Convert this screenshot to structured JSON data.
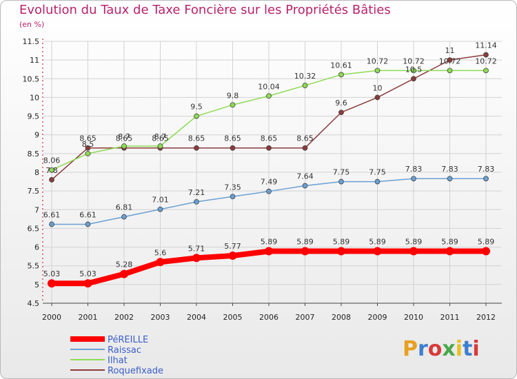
{
  "title": "Evolution du Taux de Taxe Foncière sur les Propriétés Bâties",
  "subtitle": "(en %)",
  "logo": "Proxiti",
  "chart_data": {
    "type": "line",
    "title": "Evolution du Taux de Taxe Foncière sur les Propriétés Bâties",
    "ylabel": "(en %)",
    "xlabel": "",
    "ylim": [
      4.5,
      11.5
    ],
    "yticks": [
      4.5,
      5,
      5.5,
      6,
      6.5,
      7,
      7.5,
      8,
      8.5,
      9,
      9.5,
      10,
      10.5,
      11,
      11.5
    ],
    "ytick_labels": [
      "4.5",
      "5",
      "5.5",
      "6",
      "6.5",
      "7",
      "7.5",
      "8",
      "8.5",
      "9",
      "9.5",
      "10",
      "10.5",
      "11",
      "11.5"
    ],
    "categories": [
      "2000",
      "2001",
      "2002",
      "2003",
      "2004",
      "2005",
      "2006",
      "2007",
      "2008",
      "2009",
      "2010",
      "2011",
      "2012"
    ],
    "grid": true,
    "legend": "bottom-left",
    "series": [
      {
        "name": "PéREILLE",
        "color": "#ff0000",
        "values": [
          5.03,
          5.03,
          5.28,
          5.6,
          5.71,
          5.77,
          5.89,
          5.89,
          5.89,
          5.89,
          5.89,
          5.89,
          5.89
        ],
        "labels": [
          "5.03",
          "5.03",
          "5.28",
          "5.6",
          "5.71",
          "5.77",
          "5.89",
          "5.89",
          "5.89",
          "5.89",
          "5.89",
          "5.89",
          "5.89"
        ]
      },
      {
        "name": "Raissac",
        "color": "#6a9fd2",
        "values": [
          6.61,
          6.61,
          6.81,
          7.01,
          7.21,
          7.35,
          7.49,
          7.64,
          7.75,
          7.75,
          7.83,
          7.83,
          7.83
        ],
        "labels": [
          "6.61",
          "6.61",
          "6.81",
          "7.01",
          "7.21",
          "7.35",
          "7.49",
          "7.64",
          "7.75",
          "7.75",
          "7.83",
          "7.83",
          "7.83"
        ]
      },
      {
        "name": "Ilhat",
        "color": "#8dda52",
        "values": [
          8.06,
          8.5,
          8.7,
          8.7,
          9.5,
          9.8,
          10.04,
          10.32,
          10.61,
          10.72,
          10.72,
          10.72,
          10.72
        ],
        "labels": [
          "8.06",
          "8.5",
          "8.7",
          "8.7",
          "9.5",
          "9.8",
          "10.04",
          "10.32",
          "10.61",
          "10.72",
          "10.72",
          "10.72",
          "10.72"
        ]
      },
      {
        "name": "Roquefixade",
        "color": "#8b3a3a",
        "values": [
          7.8,
          8.65,
          8.65,
          8.65,
          8.65,
          8.65,
          8.65,
          8.65,
          9.6,
          10,
          10.5,
          11,
          11.14
        ],
        "labels": [
          "7.8",
          "8.65",
          "8.65",
          "8.65",
          "8.65",
          "8.65",
          "8.65",
          "8.65",
          "9.6",
          "10",
          "10.5",
          "11",
          "11.14"
        ]
      }
    ]
  }
}
